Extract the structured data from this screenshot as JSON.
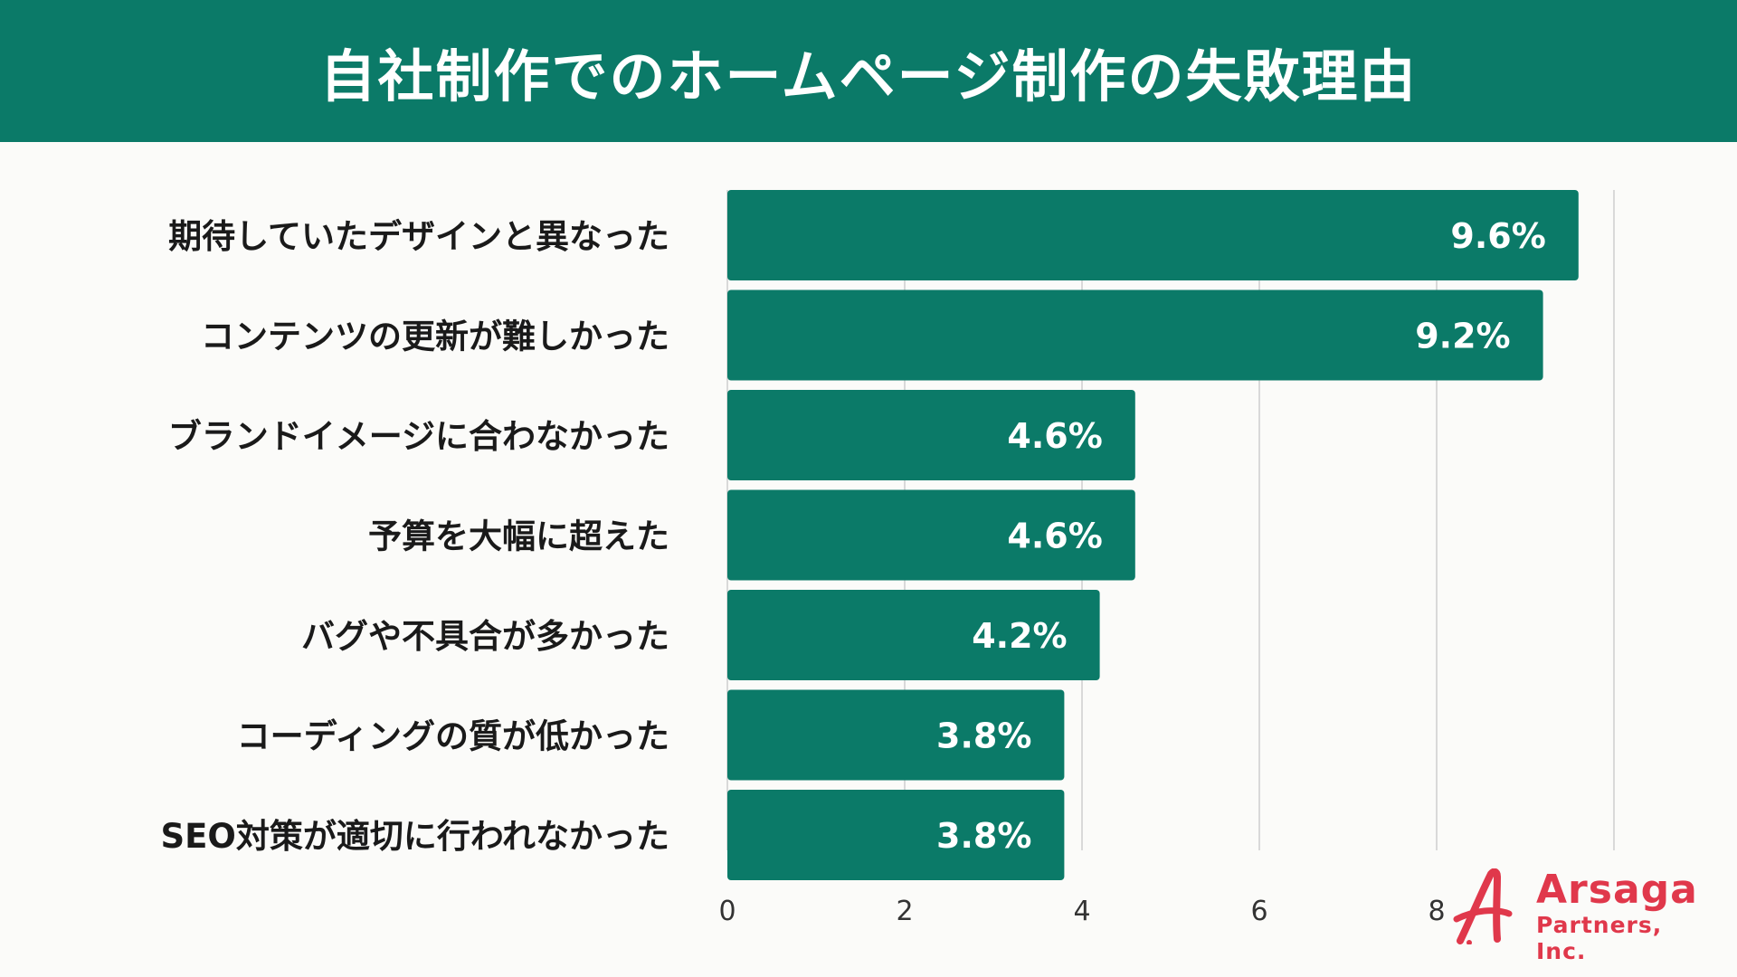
{
  "title": "自社制作でのホームページ制作の失敗理由",
  "colors": {
    "header_bg": "#0b7a68",
    "bar": "#0b7a68",
    "brand": "#e0384b",
    "grid": "#d9d9d9"
  },
  "chart_data": {
    "type": "bar",
    "orientation": "horizontal",
    "categories": [
      "期待していたデザインと異なった",
      "コンテンツの更新が難しかった",
      "ブランドイメージに合わなかった",
      "予算を大幅に超えた",
      "バグや不具合が多かった",
      "コーディングの質が低かった",
      "SEO対策が適切に行われなかった"
    ],
    "values": [
      9.6,
      9.2,
      4.6,
      4.6,
      4.2,
      3.8,
      3.8
    ],
    "value_labels": [
      "9.6%",
      "9.2%",
      "4.6%",
      "4.6%",
      "4.2%",
      "3.8%",
      "3.8%"
    ],
    "x_ticks": [
      0,
      2,
      4,
      6,
      8
    ],
    "xlim": [
      0,
      10
    ],
    "grid": true
  },
  "logo": {
    "name": "Arsaga",
    "sub": "Partners, Inc."
  }
}
